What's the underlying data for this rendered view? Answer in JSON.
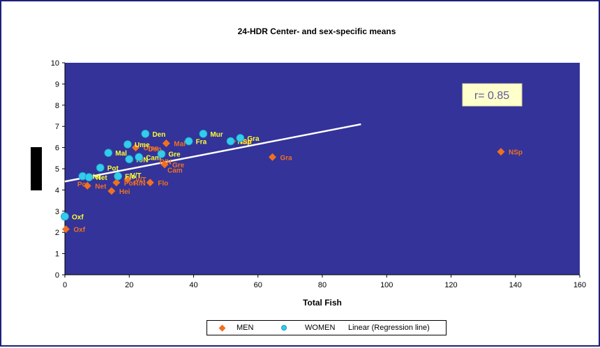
{
  "chart_data": {
    "type": "scatter",
    "title": "24-HDR Center- and sex-specific means",
    "xlabel": "Total Fish",
    "ylabel": "",
    "xlim": [
      0,
      160
    ],
    "ylim": [
      0,
      10
    ],
    "xticks": [
      "0",
      "20",
      "40",
      "60",
      "80",
      "100",
      "120",
      "140",
      "160"
    ],
    "yticks": [
      "0",
      "1",
      "2",
      "3",
      "4",
      "5",
      "6",
      "7",
      "8",
      "9",
      "10"
    ],
    "grid": false,
    "legend_position": "bottom",
    "annotation": "r= 0.85",
    "colors": {
      "plot_bg": "#333399",
      "men": "#f07020",
      "women": "#33ccee",
      "regression": "#ffffff",
      "women_label": "#ffff33",
      "annotation_bg": "#ffffcc"
    },
    "series": [
      {
        "name": "MEN",
        "marker": "diamond",
        "points": [
          {
            "x": 0.3,
            "y": 2.15,
            "label": "Oxf"
          },
          {
            "x": 7,
            "y": 4.2,
            "label": "Net"
          },
          {
            "x": 14.5,
            "y": 3.95,
            "label": "Hei"
          },
          {
            "x": 16,
            "y": 4.35,
            "label": "Pot"
          },
          {
            "x": 19.5,
            "y": 4.5,
            "label": "V/T"
          },
          {
            "x": 22,
            "y": 6.0,
            "label": "Ume"
          },
          {
            "x": 26.5,
            "y": 4.35,
            "label": "Flo"
          },
          {
            "x": 31,
            "y": 5.2,
            "label": "Gre"
          },
          {
            "x": 31.5,
            "y": 6.2,
            "label": "Mal"
          },
          {
            "x": 52,
            "y": 6.3,
            "label": "Mur"
          },
          {
            "x": 64.5,
            "y": 5.55,
            "label": "Gra"
          },
          {
            "x": 135.5,
            "y": 5.8,
            "label": "NSp"
          }
        ]
      },
      {
        "name": "WOMEN",
        "marker": "circle",
        "points": [
          {
            "x": 0,
            "y": 2.75,
            "label": "Oxf"
          },
          {
            "x": 5.5,
            "y": 4.65,
            "label": "Hei"
          },
          {
            "x": 7.5,
            "y": 4.6,
            "label": "Net"
          },
          {
            "x": 11,
            "y": 5.05,
            "label": "Pot"
          },
          {
            "x": 13.5,
            "y": 5.75,
            "label": "Mal"
          },
          {
            "x": 16.5,
            "y": 4.65,
            "label": "Flo"
          },
          {
            "x": 19.5,
            "y": 6.15,
            "label": "Ume"
          },
          {
            "x": 20,
            "y": 5.45,
            "label": "R/N"
          },
          {
            "x": 23,
            "y": 5.55,
            "label": "Cam"
          },
          {
            "x": 25,
            "y": 6.65,
            "label": "Den"
          },
          {
            "x": 30,
            "y": 5.7,
            "label": "Gre"
          },
          {
            "x": 38.5,
            "y": 6.3,
            "label": "Fra"
          },
          {
            "x": 43,
            "y": 6.65,
            "label": "Mur"
          },
          {
            "x": 51.5,
            "y": 6.3,
            "label": "NSp"
          },
          {
            "x": 54.5,
            "y": 6.45,
            "label": "Gra"
          }
        ]
      },
      {
        "name": "Linear (Regression line)",
        "type": "line",
        "x": [
          0,
          92
        ],
        "y": [
          4.4,
          7.1
        ]
      }
    ],
    "other_labels": [
      {
        "x": 3,
        "y": 4.3,
        "label": "Pot",
        "color": "men"
      },
      {
        "x": 25,
        "y": 5.95,
        "label": "Den",
        "color": "men"
      },
      {
        "x": 31,
        "y": 4.95,
        "label": "Cam",
        "color": "men"
      },
      {
        "x": 28.5,
        "y": 5.35,
        "label": "R/N",
        "color": "men"
      },
      {
        "x": 19.5,
        "y": 4.7,
        "label": "V/T",
        "color": "women"
      },
      {
        "x": 20.5,
        "y": 4.35,
        "label": "R/N",
        "color": "men"
      }
    ]
  }
}
